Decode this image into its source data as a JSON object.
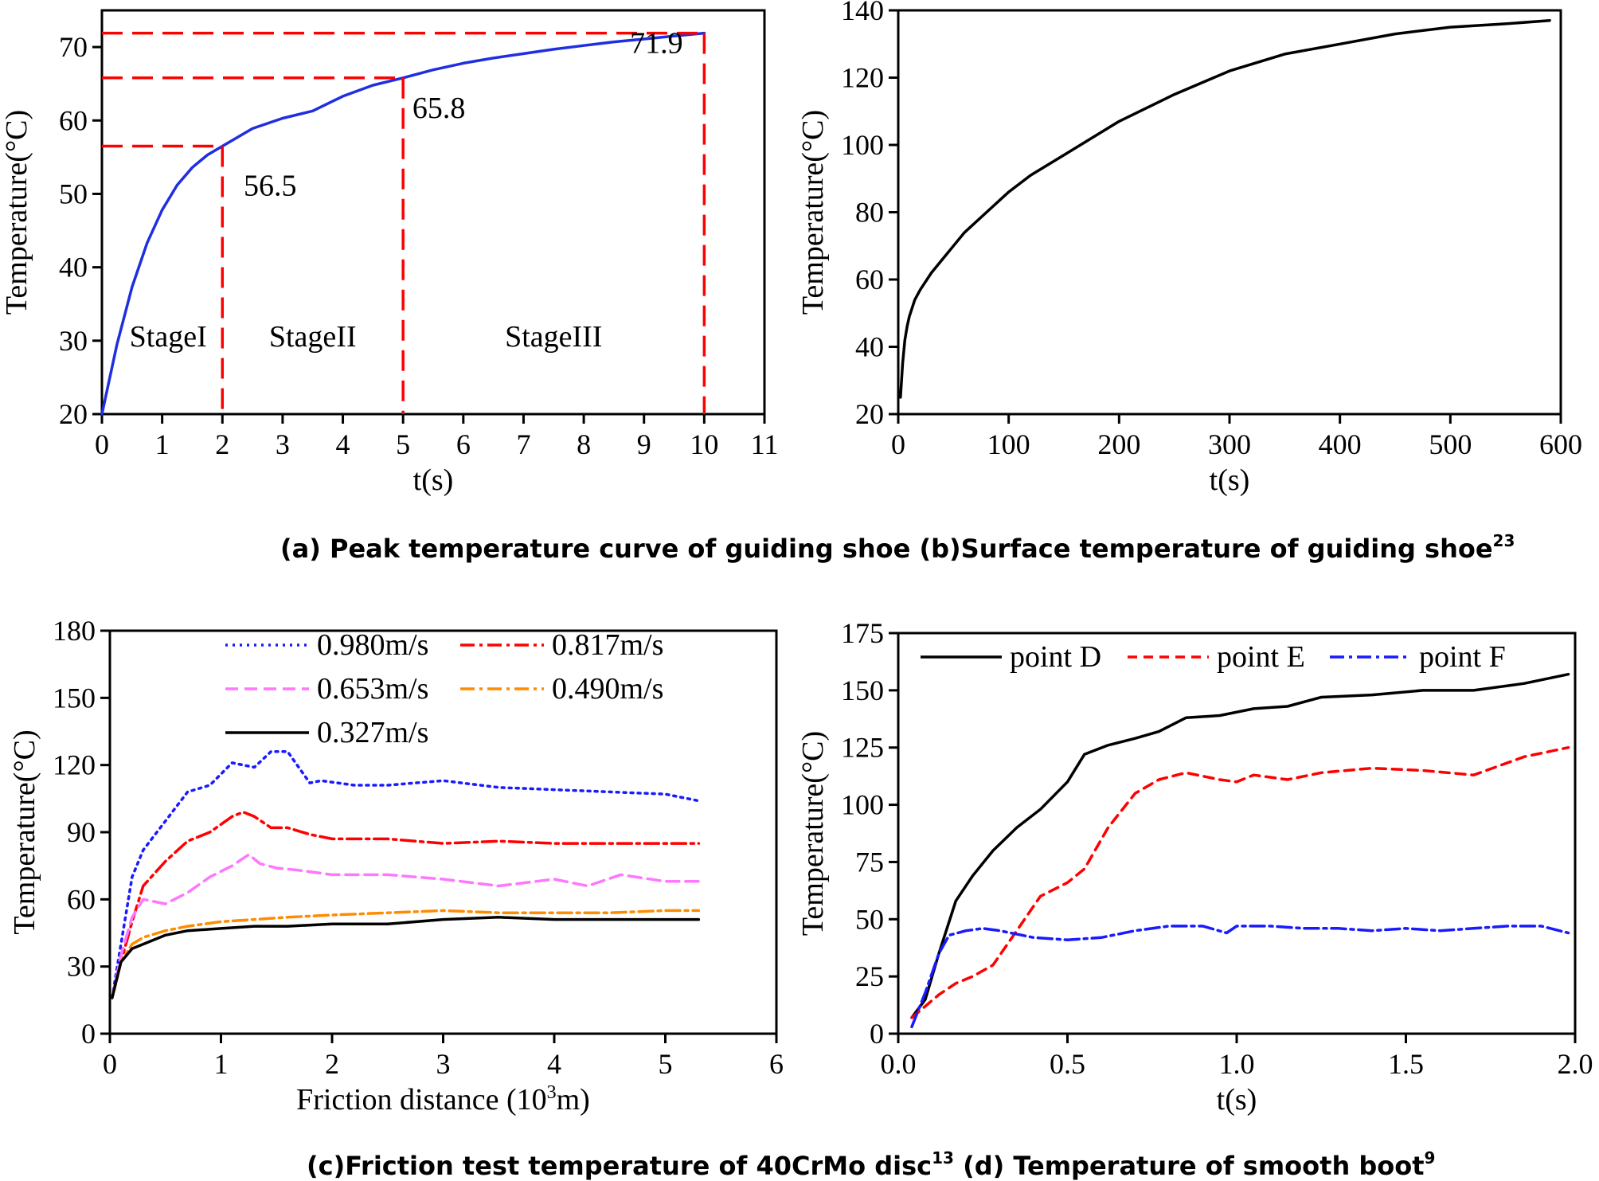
{
  "captions": {
    "top": "(a) Peak temperature curve of guiding shoe (b)Surface temperature of guiding shoe",
    "top_sup": "23",
    "bottom_c": "(c)Friction test temperature of 40CrMo disc",
    "bottom_c_sup": "13",
    "bottom_d": " (d) Temperature of smooth boot",
    "bottom_d_sup": "9"
  },
  "chart_data": [
    {
      "id": "a",
      "type": "line",
      "xlabel": "t(s)",
      "ylabel": "Temperature(°C)",
      "xlim": [
        0,
        11
      ],
      "ylim": [
        20,
        75
      ],
      "xticks": [
        0,
        1,
        2,
        3,
        4,
        5,
        6,
        7,
        8,
        9,
        10,
        11
      ],
      "yticks": [
        20,
        30,
        40,
        50,
        60,
        70
      ],
      "series": [
        {
          "name": "Peak temperature",
          "color": "#1f2fe0",
          "x": [
            0,
            0.25,
            0.5,
            0.75,
            1,
            1.25,
            1.5,
            1.75,
            2,
            2.5,
            3,
            3.5,
            4,
            4.5,
            5,
            5.5,
            6,
            6.5,
            7,
            7.5,
            8,
            8.5,
            9,
            9.5,
            10
          ],
          "y": [
            20,
            29.5,
            37.3,
            43.3,
            47.8,
            51.2,
            53.6,
            55.3,
            56.5,
            58.9,
            60.3,
            61.3,
            63.3,
            64.8,
            65.8,
            66.9,
            67.8,
            68.5,
            69.1,
            69.7,
            70.2,
            70.7,
            71.1,
            71.5,
            71.9
          ]
        }
      ],
      "markers": [
        {
          "x": 2,
          "y": 56.5,
          "label": "56.5"
        },
        {
          "x": 5,
          "y": 65.8,
          "label": "65.8"
        },
        {
          "x": 10,
          "y": 71.9,
          "label": "71.9"
        }
      ],
      "stages": [
        "StageI",
        "StageII",
        "StageIII"
      ],
      "guide_color": "#ff0000"
    },
    {
      "id": "b",
      "type": "line",
      "xlabel": "t(s)",
      "ylabel": "Temperature(°C)",
      "xlim": [
        0,
        600
      ],
      "ylim": [
        20,
        140
      ],
      "xticks": [
        0,
        100,
        200,
        300,
        400,
        500,
        600
      ],
      "yticks": [
        20,
        40,
        60,
        80,
        100,
        120,
        140
      ],
      "series": [
        {
          "name": "Surface temperature",
          "color": "#000000",
          "x": [
            2,
            4,
            6,
            8,
            10,
            15,
            20,
            30,
            40,
            50,
            60,
            80,
            100,
            120,
            150,
            200,
            250,
            300,
            350,
            400,
            450,
            500,
            550,
            590
          ],
          "y": [
            25,
            35,
            42,
            46,
            49,
            54,
            57,
            62,
            66,
            70,
            74,
            80,
            86,
            91,
            97,
            107,
            115,
            122,
            127,
            130,
            133,
            135,
            136,
            137
          ]
        }
      ]
    },
    {
      "id": "c",
      "type": "line",
      "xlabel": "Friction distance (10",
      "xlabel_sup": "3",
      "xlabel_tail": "m)",
      "ylabel": "Temperature(°C)",
      "xlim": [
        0,
        6
      ],
      "ylim": [
        0,
        180
      ],
      "xticks": [
        0,
        1,
        2,
        3,
        4,
        5,
        6
      ],
      "yticks": [
        0,
        30,
        60,
        90,
        120,
        150,
        180
      ],
      "series": [
        {
          "name": "0.980m/s",
          "color": "#1a1aff",
          "dash": "3,6",
          "x": [
            0.02,
            0.1,
            0.2,
            0.3,
            0.5,
            0.7,
            0.9,
            1.1,
            1.3,
            1.45,
            1.6,
            1.7,
            1.8,
            1.9,
            2.2,
            2.5,
            3.0,
            3.5,
            4.0,
            4.5,
            5.0,
            5.3
          ],
          "y": [
            16,
            40,
            70,
            82,
            95,
            108,
            111,
            121,
            119,
            126,
            126,
            119,
            112,
            113,
            111,
            111,
            113,
            110,
            109,
            108,
            107,
            104
          ]
        },
        {
          "name": "0.817m/s",
          "color": "#ff0000",
          "dash": "18,6,4,6",
          "x": [
            0.02,
            0.1,
            0.2,
            0.3,
            0.5,
            0.7,
            0.9,
            1.1,
            1.2,
            1.3,
            1.45,
            1.6,
            1.8,
            2.0,
            2.5,
            3.0,
            3.5,
            4.0,
            4.5,
            5.0,
            5.3
          ],
          "y": [
            16,
            32,
            50,
            66,
            77,
            86,
            90,
            97,
            99,
            97,
            92,
            92,
            89,
            87,
            87,
            85,
            86,
            85,
            85,
            85,
            85
          ]
        },
        {
          "name": "0.653m/s",
          "color": "#ff77ff",
          "dash": "16,8",
          "x": [
            0.02,
            0.1,
            0.2,
            0.3,
            0.4,
            0.5,
            0.7,
            0.9,
            1.1,
            1.25,
            1.35,
            1.5,
            1.7,
            2.0,
            2.5,
            3.0,
            3.5,
            4.0,
            4.3,
            4.6,
            5.0,
            5.3
          ],
          "y": [
            16,
            35,
            52,
            60,
            59,
            58,
            63,
            70,
            75,
            80,
            76,
            74,
            73,
            71,
            71,
            69,
            66,
            69,
            66,
            71,
            68,
            68
          ]
        },
        {
          "name": "0.490m/s",
          "color": "#ff8c00",
          "dash": "18,6,4,6",
          "x": [
            0.02,
            0.1,
            0.2,
            0.3,
            0.5,
            0.7,
            1.0,
            1.3,
            1.6,
            2.0,
            2.5,
            3.0,
            3.5,
            4.0,
            4.5,
            5.0,
            5.3
          ],
          "y": [
            16,
            32,
            40,
            43,
            46,
            48,
            50,
            51,
            52,
            53,
            54,
            55,
            54,
            54,
            54,
            55,
            55
          ]
        },
        {
          "name": "0.327m/s",
          "color": "#000000",
          "dash": "",
          "x": [
            0.02,
            0.1,
            0.2,
            0.3,
            0.5,
            0.7,
            1.0,
            1.3,
            1.6,
            2.0,
            2.5,
            3.0,
            3.5,
            4.0,
            4.5,
            5.0,
            5.3
          ],
          "y": [
            16,
            32,
            38,
            40,
            44,
            46,
            47,
            48,
            48,
            49,
            49,
            51,
            52,
            51,
            51,
            51,
            51
          ]
        }
      ]
    },
    {
      "id": "d",
      "type": "line",
      "xlabel": "t(s)",
      "ylabel": "Temperature(°C)",
      "xlim": [
        0,
        2
      ],
      "ylim": [
        0,
        175
      ],
      "xticks": [
        "0.0",
        "0.5",
        "1.0",
        "1.5",
        "2.0"
      ],
      "yticks": [
        0,
        25,
        50,
        75,
        100,
        125,
        150,
        175
      ],
      "series": [
        {
          "name": "point D",
          "color": "#000000",
          "dash": "",
          "x": [
            0.04,
            0.08,
            0.12,
            0.17,
            0.22,
            0.28,
            0.35,
            0.42,
            0.5,
            0.55,
            0.62,
            0.7,
            0.77,
            0.85,
            0.95,
            1.05,
            1.15,
            1.25,
            1.4,
            1.55,
            1.7,
            1.85,
            1.98
          ],
          "y": [
            7,
            15,
            35,
            58,
            69,
            80,
            90,
            98,
            110,
            122,
            126,
            129,
            132,
            138,
            139,
            142,
            143,
            147,
            148,
            150,
            150,
            153,
            157
          ]
        },
        {
          "name": "point E",
          "color": "#ff0000",
          "dash": "12,8",
          "x": [
            0.04,
            0.08,
            0.12,
            0.17,
            0.22,
            0.28,
            0.35,
            0.42,
            0.5,
            0.55,
            0.62,
            0.7,
            0.77,
            0.85,
            0.95,
            1.0,
            1.05,
            1.15,
            1.25,
            1.4,
            1.55,
            1.7,
            1.85,
            1.98
          ],
          "y": [
            7,
            12,
            17,
            22,
            25,
            30,
            45,
            60,
            66,
            72,
            90,
            105,
            111,
            114,
            111,
            110,
            113,
            111,
            114,
            116,
            115,
            113,
            121,
            125
          ]
        },
        {
          "name": "point F",
          "color": "#1a1aff",
          "dash": "18,6,4,6",
          "x": [
            0.04,
            0.08,
            0.12,
            0.15,
            0.2,
            0.25,
            0.3,
            0.4,
            0.5,
            0.6,
            0.7,
            0.8,
            0.9,
            0.97,
            1.0,
            1.1,
            1.2,
            1.3,
            1.4,
            1.5,
            1.6,
            1.7,
            1.8,
            1.9,
            1.98
          ],
          "y": [
            3,
            18,
            35,
            43,
            45,
            46,
            45,
            42,
            41,
            42,
            45,
            47,
            47,
            44,
            47,
            47,
            46,
            46,
            45,
            46,
            45,
            46,
            47,
            47,
            44
          ]
        }
      ]
    }
  ]
}
